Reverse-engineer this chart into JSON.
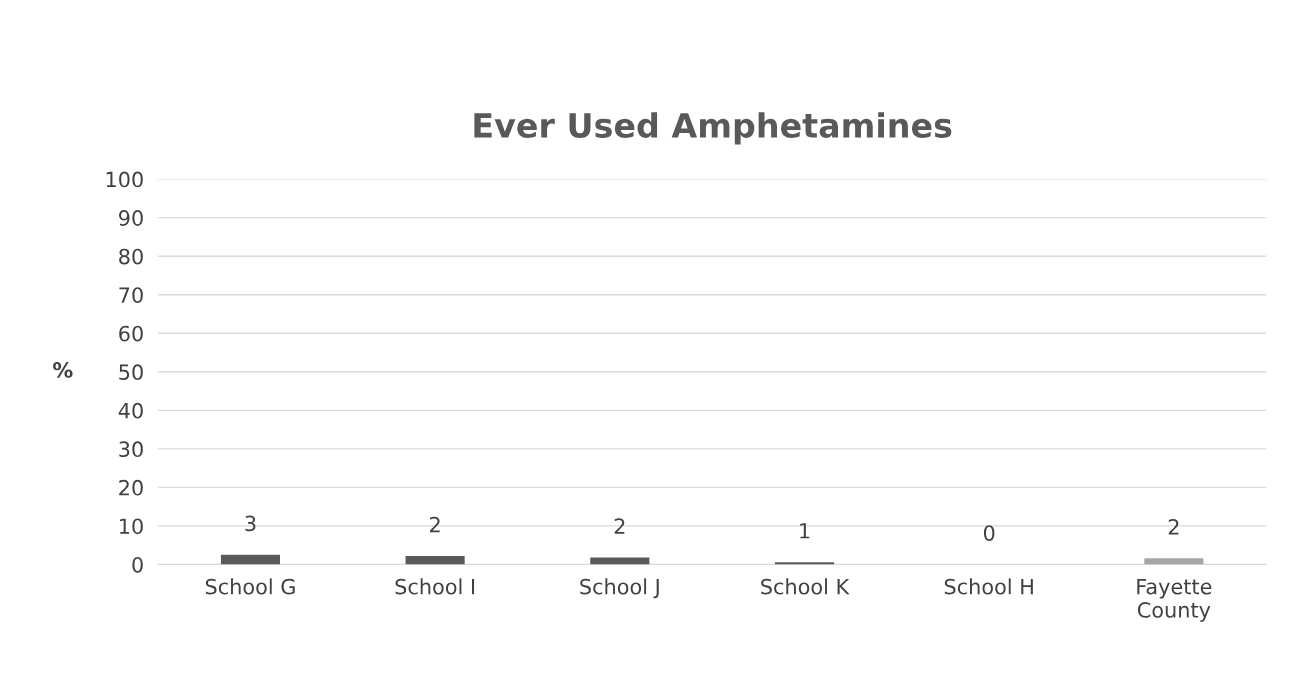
{
  "chart_data": {
    "type": "bar",
    "title": "Ever Used Amphetamines",
    "ylabel": "%",
    "categories": [
      "School G",
      "School I",
      "School J",
      "School K",
      "School H",
      "Fayette\nCounty"
    ],
    "values": [
      2.5,
      2.2,
      1.8,
      0.6,
      0,
      1.6
    ],
    "value_labels": [
      "3",
      "2",
      "2",
      "1",
      "0",
      "2"
    ],
    "colors": [
      "#595959",
      "#595959",
      "#595959",
      "#595959",
      "#595959",
      "#a6a6a6"
    ],
    "ylim": [
      0,
      100
    ],
    "yticks": [
      0,
      10,
      20,
      30,
      40,
      50,
      60,
      70,
      80,
      90,
      100
    ],
    "grid": "y",
    "legend": false
  }
}
